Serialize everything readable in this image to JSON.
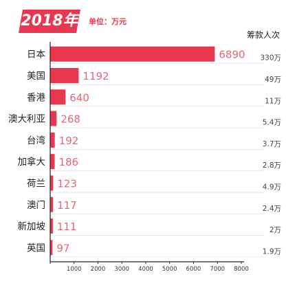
{
  "header": {
    "year": "2018年",
    "unit": "单位：万元"
  },
  "right_column_title": "筹款人次",
  "colors": {
    "bar": "#e8384f",
    "value_label": "#e8647a",
    "grid": "#e6e6e6",
    "axis": "#222222"
  },
  "chart_data": {
    "type": "bar",
    "orientation": "horizontal",
    "categories": [
      "日本",
      "美国",
      "香港",
      "澳大利亚",
      "台湾",
      "加拿大",
      "荷兰",
      "澳门",
      "新加坡",
      "英国"
    ],
    "values": [
      6890,
      1192,
      640,
      268,
      192,
      186,
      123,
      117,
      111,
      97
    ],
    "value_labels": [
      "6890",
      "1192",
      "640",
      "268",
      "192",
      "186",
      "123",
      "117",
      "111",
      "97"
    ],
    "right_labels": [
      "330万",
      "49万",
      "11万",
      "5.4万",
      "3.7万",
      "2.8万",
      "4.9万",
      "2.4万",
      "2万",
      "1.9万"
    ],
    "xlim": [
      0,
      8000
    ],
    "xticks": [
      0,
      1000,
      2000,
      3000,
      4000,
      5000,
      6000,
      7000,
      8000
    ],
    "xtick_labels": [
      "",
      "1000",
      "2000",
      "3000",
      "4000",
      "5000",
      "6000",
      "7000",
      "8000"
    ],
    "grid": "horizontal row lines"
  }
}
